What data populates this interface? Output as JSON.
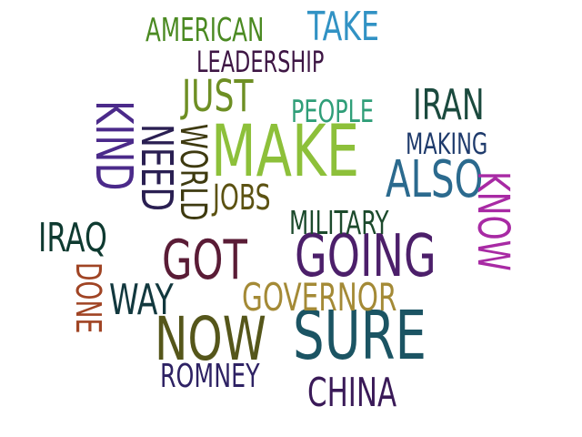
{
  "words": {
    "make": {
      "text": "MAKE",
      "color": "#8dc03a"
    },
    "sure": {
      "text": "SURE",
      "color": "#1b5463"
    },
    "now": {
      "text": "NOW",
      "color": "#55561a"
    },
    "going": {
      "text": "GOING",
      "color": "#4c1f6a"
    },
    "got": {
      "text": "GOT",
      "color": "#5a1c36"
    },
    "also": {
      "text": "ALSO",
      "color": "#2b6a8e"
    },
    "just": {
      "text": "JUST",
      "color": "#6e8f24"
    },
    "iran": {
      "text": "IRAN",
      "color": "#1b4a3e"
    },
    "iraq": {
      "text": "IRAQ",
      "color": "#0e3a30"
    },
    "way": {
      "text": "WAY",
      "color": "#12383e"
    },
    "governor": {
      "text": "GOVERNOR",
      "color": "#a48a36"
    },
    "china": {
      "text": "CHINA",
      "color": "#3a1a58"
    },
    "romney": {
      "text": "ROMNEY",
      "color": "#2e2264"
    },
    "take": {
      "text": "TAKE",
      "color": "#3192c4"
    },
    "american": {
      "text": "AMERICAN",
      "color": "#4b8a22"
    },
    "leadership": {
      "text": "LEADERSHIP",
      "color": "#3e1644"
    },
    "people": {
      "text": "PEOPLE",
      "color": "#2f9e78"
    },
    "making": {
      "text": "MAKING",
      "color": "#1f3b6c"
    },
    "jobs": {
      "text": "JOBS",
      "color": "#5c5212"
    },
    "military": {
      "text": "MILITARY",
      "color": "#1c4a2c"
    },
    "kind": {
      "text": "KIND",
      "color": "#4b2a8a"
    },
    "need": {
      "text": "NEED",
      "color": "#2a1f52"
    },
    "world": {
      "text": "WORLD",
      "color": "#3e3a10"
    },
    "know": {
      "text": "KNOW",
      "color": "#a82aa4"
    },
    "done": {
      "text": "DONE",
      "color": "#a04424"
    }
  }
}
